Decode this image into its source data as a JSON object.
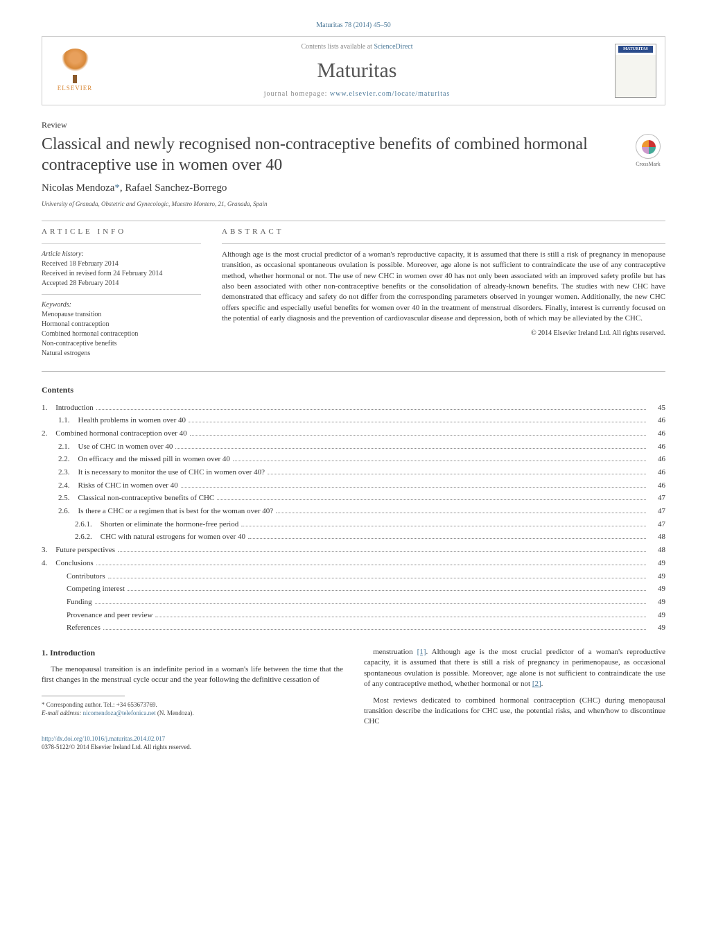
{
  "header": {
    "citation": "Maturitas 78 (2014) 45–50",
    "contents_prefix": "Contents lists available at ",
    "contents_link": "ScienceDirect",
    "journal": "Maturitas",
    "home_prefix": "journal homepage: ",
    "home_url": "www.elsevier.com/locate/maturitas",
    "publisher": "ELSEVIER"
  },
  "article": {
    "type": "Review",
    "title": "Classical and newly recognised non-contraceptive benefits of combined hormonal contraceptive use in women over 40",
    "crossmark": "CrossMark",
    "authors_html": "Nicolas Mendoza",
    "authors_sep": ", ",
    "authors_2": "Rafael Sanchez-Borrego",
    "corr_mark": "*",
    "affiliation": "University of Granada, Obstetric and Gynecologic, Maestro Montero, 21, Granada, Spain"
  },
  "info": {
    "heading": "ARTICLE INFO",
    "hist_label": "Article history:",
    "hist1": "Received 18 February 2014",
    "hist2": "Received in revised form 24 February 2014",
    "hist3": "Accepted 28 February 2014",
    "kw_label": "Keywords:",
    "kw1": "Menopause transition",
    "kw2": "Hormonal contraception",
    "kw3": "Combined hormonal contraception",
    "kw4": "Non-contraceptive benefits",
    "kw5": "Natural estrogens"
  },
  "abstract": {
    "heading": "ABSTRACT",
    "text": "Although age is the most crucial predictor of a woman's reproductive capacity, it is assumed that there is still a risk of pregnancy in menopause transition, as occasional spontaneous ovulation is possible. Moreover, age alone is not sufficient to contraindicate the use of any contraceptive method, whether hormonal or not. The use of new CHC in women over 40 has not only been associated with an improved safety profile but has also been associated with other non-contraceptive benefits or the consolidation of already-known benefits. The studies with new CHC have demonstrated that efficacy and safety do not differ from the corresponding parameters observed in younger women. Additionally, the new CHC offers specific and especially useful benefits for women over 40 in the treatment of menstrual disorders. Finally, interest is currently focused on the potential of early diagnosis and the prevention of cardiovascular disease and depression, both of which may be alleviated by the CHC.",
    "copyright": "© 2014 Elsevier Ireland Ltd. All rights reserved."
  },
  "contents": {
    "heading": "Contents",
    "items": [
      {
        "num": "1.",
        "label": "Introduction",
        "page": "45",
        "indent": 0
      },
      {
        "num": "1.1.",
        "label": "Health problems in women over 40",
        "page": "46",
        "indent": 1
      },
      {
        "num": "2.",
        "label": "Combined hormonal contraception over 40",
        "page": "46",
        "indent": 0
      },
      {
        "num": "2.1.",
        "label": "Use of CHC in women over 40",
        "page": "46",
        "indent": 1
      },
      {
        "num": "2.2.",
        "label": "On efficacy and the missed pill in women over 40",
        "page": "46",
        "indent": 1
      },
      {
        "num": "2.3.",
        "label": "It is necessary to monitor the use of CHC in women over 40?",
        "page": "46",
        "indent": 1
      },
      {
        "num": "2.4.",
        "label": "Risks of CHC in women over 40",
        "page": "46",
        "indent": 1
      },
      {
        "num": "2.5.",
        "label": "Classical non-contraceptive benefits of CHC",
        "page": "47",
        "indent": 1
      },
      {
        "num": "2.6.",
        "label": "Is there a CHC or a regimen that is best for the woman over 40?",
        "page": "47",
        "indent": 1
      },
      {
        "num": "2.6.1.",
        "label": "Shorten or eliminate the hormone-free period",
        "page": "47",
        "indent": 2
      },
      {
        "num": "2.6.2.",
        "label": "CHC with natural estrogens for women over 40",
        "page": "48",
        "indent": 2
      },
      {
        "num": "3.",
        "label": "Future perspectives",
        "page": "48",
        "indent": 0
      },
      {
        "num": "4.",
        "label": "Conclusions",
        "page": "49",
        "indent": 0
      },
      {
        "num": "",
        "label": "Contributors",
        "page": "49",
        "indent": 1
      },
      {
        "num": "",
        "label": "Competing interest",
        "page": "49",
        "indent": 1
      },
      {
        "num": "",
        "label": "Funding",
        "page": "49",
        "indent": 1
      },
      {
        "num": "",
        "label": "Provenance and peer review",
        "page": "49",
        "indent": 1
      },
      {
        "num": "",
        "label": "References",
        "page": "49",
        "indent": 1
      }
    ]
  },
  "body": {
    "section_heading": "1. Introduction",
    "p1": "The menopausal transition is an indefinite period in a woman's life between the time that the first changes in the menstrual cycle occur and the year following the definitive cessation of",
    "p2_a": "menstruation ",
    "ref1": "[1]",
    "p2_b": ". Although age is the most crucial predictor of a woman's reproductive capacity, it is assumed that there is still a risk of pregnancy in perimenopause, as occasional spontaneous ovulation is possible. Moreover, age alone is not sufficient to contraindicate the use of any contraceptive method, whether hormonal or not ",
    "ref2": "[2]",
    "p2_c": ".",
    "p3": "Most reviews dedicated to combined hormonal contraception (CHC) during menopausal transition describe the indications for CHC use, the potential risks, and when/how to discontinue CHC"
  },
  "footnotes": {
    "corr": "* Corresponding author. Tel.: +34 653673769.",
    "email_label": "E-mail address: ",
    "email": "nicomendoza@telefonica.net",
    "email_suffix": " (N. Mendoza)."
  },
  "doi": {
    "url": "http://dx.doi.org/10.1016/j.maturitas.2014.02.017",
    "issn_line": "0378-5122/© 2014 Elsevier Ireland Ltd. All rights reserved."
  },
  "style": {
    "link_color": "#4a7898",
    "text_color": "#333333",
    "rule_color": "#bbbbbb",
    "background": "#ffffff",
    "title_fontsize": 24,
    "body_fontsize": 11,
    "header_journal_fontsize": 30
  }
}
